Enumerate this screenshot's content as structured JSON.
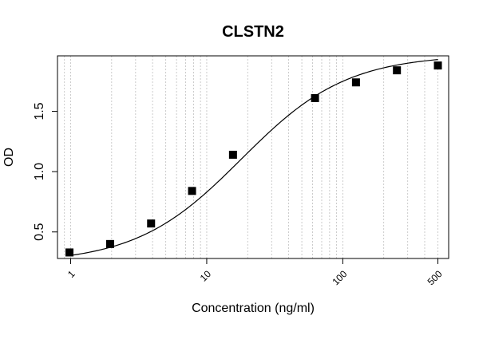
{
  "chart_data": {
    "type": "scatter",
    "title": "CLSTN2",
    "xlabel": "Concentration (ng/ml)",
    "ylabel": "OD",
    "x_scale": "log",
    "xlim": [
      0.8,
      600
    ],
    "ylim": [
      0.28,
      1.96
    ],
    "x_ticks": [
      1,
      10,
      100,
      500
    ],
    "x_tick_labels": [
      "1",
      "10",
      "100",
      "500"
    ],
    "y_ticks": [
      0.5,
      1.0,
      1.5
    ],
    "y_tick_labels": [
      "0.5",
      "1.0",
      "1.5"
    ],
    "grid": "vertical dotted at log minor ticks",
    "points": {
      "x": [
        0.98,
        1.95,
        3.9,
        7.8,
        15.6,
        62.5,
        125,
        250,
        500
      ],
      "y": [
        0.33,
        0.4,
        0.57,
        0.84,
        1.14,
        1.61,
        1.74,
        1.84,
        1.88
      ]
    },
    "fit": {
      "model": "4PL",
      "A": 0.24,
      "D": 1.97,
      "C": 18.0,
      "B": 1.12
    },
    "colors": {
      "marker": "#000000",
      "curve": "#000000",
      "grid": "#bfbfbf"
    }
  }
}
